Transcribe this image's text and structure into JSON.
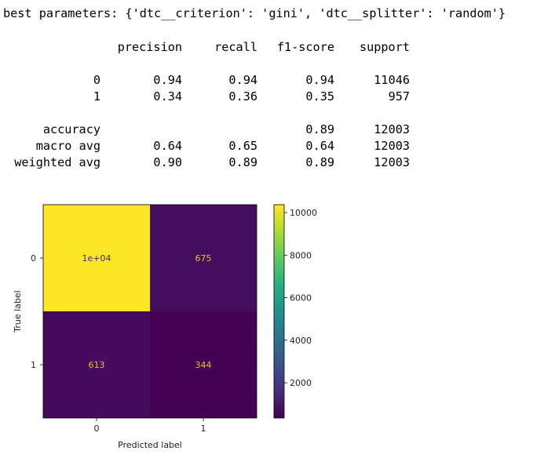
{
  "output": {
    "best_params_line": "best parameters: {'dtc__criterion': 'gini', 'dtc__splitter': 'random'}"
  },
  "report": {
    "headers": [
      "precision",
      "recall",
      "f1-score",
      "support"
    ],
    "class_rows": [
      {
        "label": "0",
        "precision": "0.94",
        "recall": "0.94",
        "f1": "0.94",
        "support": "11046"
      },
      {
        "label": "1",
        "precision": "0.34",
        "recall": "0.36",
        "f1": "0.35",
        "support": "957"
      }
    ],
    "summary_rows": [
      {
        "label": "accuracy",
        "precision": "",
        "recall": "",
        "f1": "0.89",
        "support": "12003"
      },
      {
        "label": "macro avg",
        "precision": "0.64",
        "recall": "0.65",
        "f1": "0.64",
        "support": "12003"
      },
      {
        "label": "weighted avg",
        "precision": "0.90",
        "recall": "0.89",
        "f1": "0.89",
        "support": "12003"
      }
    ]
  },
  "chart_data": {
    "type": "heatmap",
    "title": "",
    "xlabel": "Predicted label",
    "ylabel": "True label",
    "x_categories": [
      "0",
      "1"
    ],
    "y_categories": [
      "0",
      "1"
    ],
    "values": [
      [
        10371,
        675
      ],
      [
        613,
        344
      ]
    ],
    "cell_labels": [
      [
        "1e+04",
        "675"
      ],
      [
        "613",
        "344"
      ]
    ],
    "colormap": "viridis",
    "colorbar": {
      "ticks": [
        "2000",
        "4000",
        "6000",
        "8000",
        "10000"
      ],
      "tick_values": [
        2000,
        4000,
        6000,
        8000,
        10000
      ],
      "range": [
        344,
        10371
      ]
    },
    "text_colors": {
      "on_dark": "#e7c31c",
      "on_light": "#3e2a64"
    },
    "grid": false
  }
}
